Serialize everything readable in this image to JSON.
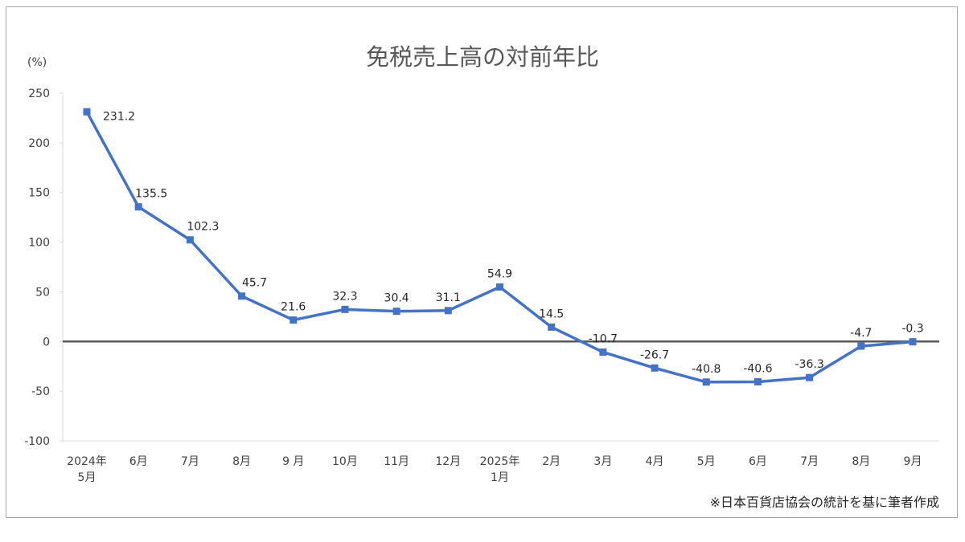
{
  "chart_data": {
    "type": "line",
    "title": "免税売上高の対前年比",
    "ylabel": "(%)",
    "categories": [
      "2024年\n5月",
      "6月",
      "7月",
      "8月",
      "9 月",
      "10月",
      "11月",
      "12月",
      "2025年\n1月",
      "2月",
      "3月",
      "4月",
      "5月",
      "6月",
      "7月",
      "8月",
      "9月"
    ],
    "values": [
      231.2,
      135.5,
      102.3,
      45.7,
      21.6,
      32.3,
      30.4,
      31.1,
      54.9,
      14.5,
      -10.7,
      -26.7,
      -40.8,
      -40.6,
      -36.3,
      -4.7,
      -0.3
    ],
    "ylim": [
      -100,
      250
    ],
    "yticks": [
      250,
      200,
      150,
      100,
      50,
      0,
      -50,
      -100
    ],
    "grid": false,
    "marker": "square",
    "series_color": "#4472C4",
    "zero_line_color": "#595959",
    "note": "※日本百貨店協会の統計を基に筆者作成"
  }
}
